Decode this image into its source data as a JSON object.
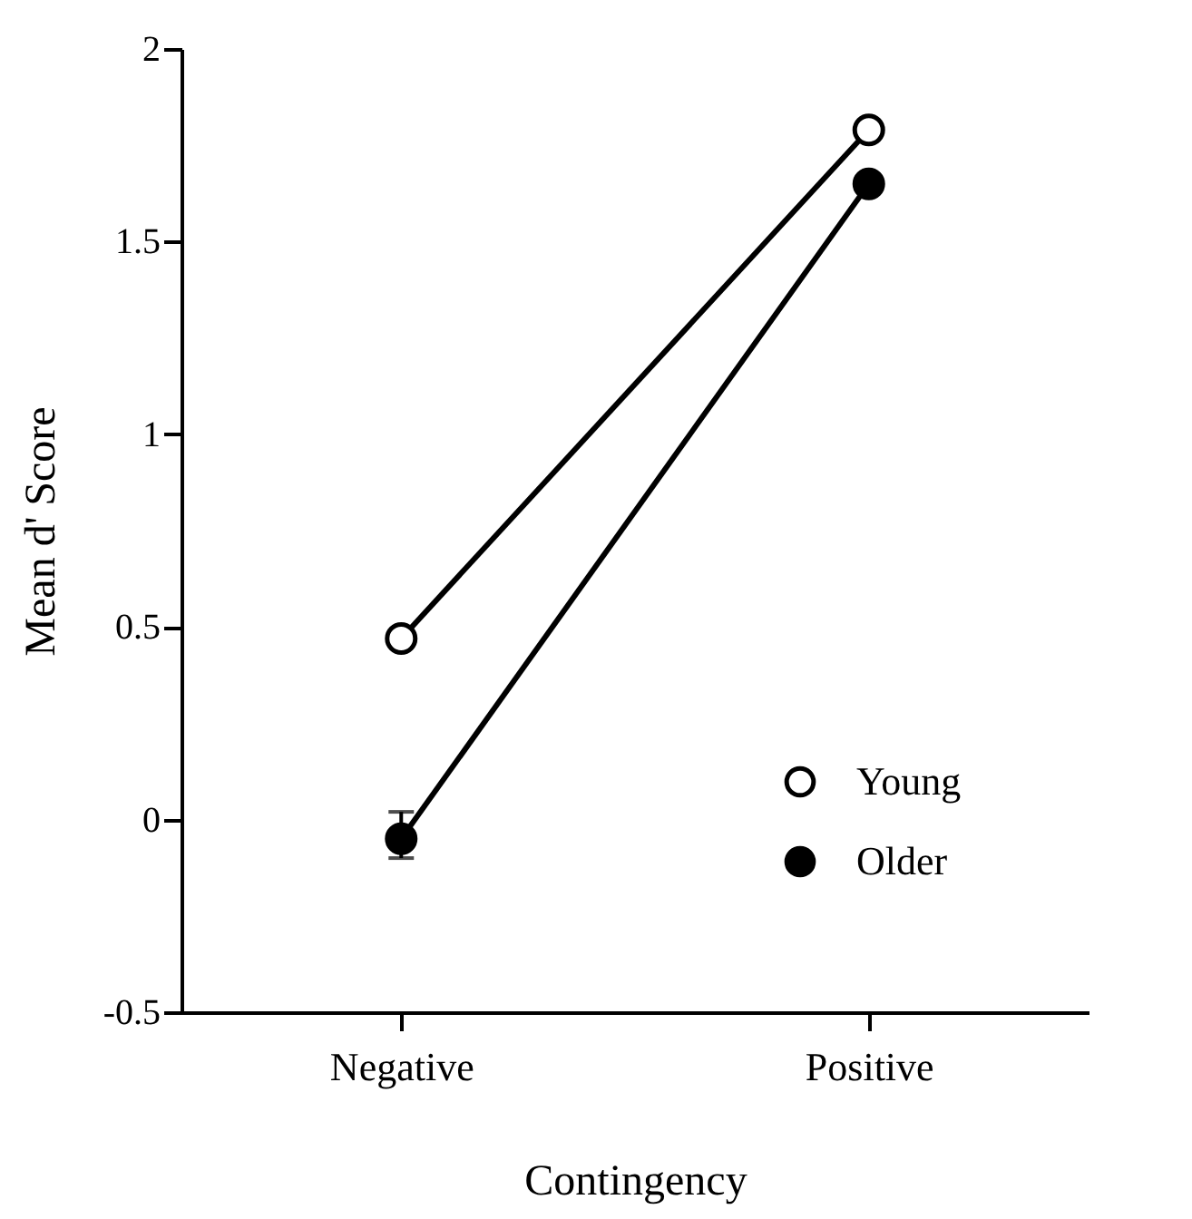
{
  "chart_data": {
    "type": "line",
    "xlabel": "Contingency",
    "ylabel": "Mean d' Score",
    "categories": [
      "Negative",
      "Positive"
    ],
    "series": [
      {
        "name": "Young",
        "color": "#000000",
        "values": [
          0.47,
          1.79
        ]
      },
      {
        "name": "Older",
        "color": "#000000",
        "values": [
          -0.05,
          1.65
        ],
        "errors": [
          [
            -0.1,
            0.02
          ],
          null
        ]
      }
    ],
    "ylim": [
      -0.5,
      2
    ],
    "yticks": [
      -0.5,
      0,
      0.5,
      1,
      1.5,
      2
    ],
    "grid": false,
    "legend": "bottom right",
    "marker": "circle",
    "line_style": "solid"
  }
}
